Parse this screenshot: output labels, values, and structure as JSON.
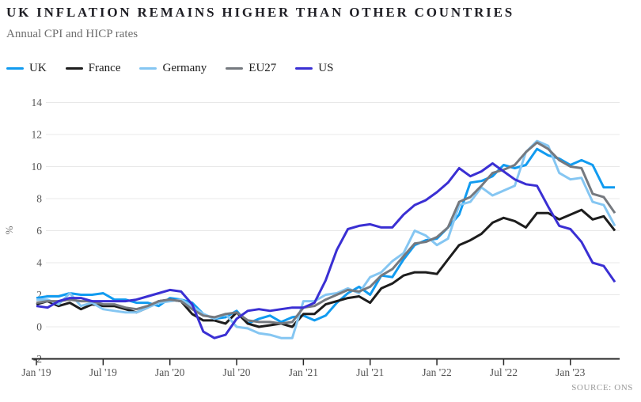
{
  "header": {
    "title": "UK INFLATION REMAINS HIGHER THAN OTHER COUNTRIES",
    "subtitle": "Annual CPI and HICP rates"
  },
  "source": "SOURCE: ONS",
  "chart_data": {
    "type": "line",
    "title": "UK INFLATION REMAINS HIGHER THAN OTHER COUNTRIES",
    "subtitle": "Annual CPI and HICP rates",
    "ylabel": "%",
    "xlabel": "",
    "ylim": [
      -2,
      14
    ],
    "ytick_step": 2,
    "grid": "horizontal",
    "legend_position": "top-left",
    "x": [
      "2019-01",
      "2019-02",
      "2019-03",
      "2019-04",
      "2019-05",
      "2019-06",
      "2019-07",
      "2019-08",
      "2019-09",
      "2019-10",
      "2019-11",
      "2019-12",
      "2020-01",
      "2020-02",
      "2020-03",
      "2020-04",
      "2020-05",
      "2020-06",
      "2020-07",
      "2020-08",
      "2020-09",
      "2020-10",
      "2020-11",
      "2020-12",
      "2021-01",
      "2021-02",
      "2021-03",
      "2021-04",
      "2021-05",
      "2021-06",
      "2021-07",
      "2021-08",
      "2021-09",
      "2021-10",
      "2021-11",
      "2021-12",
      "2022-01",
      "2022-02",
      "2022-03",
      "2022-04",
      "2022-05",
      "2022-06",
      "2022-07",
      "2022-08",
      "2022-09",
      "2022-10",
      "2022-11",
      "2022-12",
      "2023-01",
      "2023-02",
      "2023-03",
      "2023-04",
      "2023-05"
    ],
    "x_tick_indices": [
      0,
      6,
      12,
      18,
      24,
      30,
      36,
      42,
      48
    ],
    "x_tick_labels": [
      "Jan '19",
      "Jul '19",
      "Jan '20",
      "Jul '20",
      "Jan '21",
      "Jul '21",
      "Jan '22",
      "Jul '22",
      "Jan '23"
    ],
    "series": [
      {
        "name": "UK",
        "color": "#119bf0",
        "values": [
          1.8,
          1.9,
          1.9,
          2.1,
          2.0,
          2.0,
          2.1,
          1.7,
          1.7,
          1.5,
          1.5,
          1.3,
          1.8,
          1.7,
          1.5,
          0.8,
          0.5,
          0.6,
          1.0,
          0.2,
          0.5,
          0.7,
          0.3,
          0.6,
          0.7,
          0.4,
          0.7,
          1.5,
          2.1,
          2.5,
          2.0,
          3.2,
          3.1,
          4.2,
          5.1,
          5.4,
          5.5,
          6.2,
          7.0,
          9.0,
          9.1,
          9.4,
          10.1,
          9.9,
          10.1,
          11.1,
          10.7,
          10.5,
          10.1,
          10.4,
          10.1,
          8.7,
          8.7
        ]
      },
      {
        "name": "France",
        "color": "#1d1d1d",
        "values": [
          1.4,
          1.6,
          1.3,
          1.5,
          1.1,
          1.4,
          1.3,
          1.3,
          1.1,
          0.9,
          1.2,
          1.6,
          1.7,
          1.6,
          0.8,
          0.4,
          0.4,
          0.2,
          0.9,
          0.2,
          0.0,
          0.1,
          0.2,
          0.0,
          0.8,
          0.8,
          1.4,
          1.6,
          1.8,
          1.9,
          1.5,
          2.4,
          2.7,
          3.2,
          3.4,
          3.4,
          3.3,
          4.2,
          5.1,
          5.4,
          5.8,
          6.5,
          6.8,
          6.6,
          6.2,
          7.1,
          7.1,
          6.7,
          7.0,
          7.3,
          6.7,
          6.9,
          6.0
        ]
      },
      {
        "name": "Germany",
        "color": "#85c6f2",
        "values": [
          1.7,
          1.7,
          1.4,
          2.1,
          1.3,
          1.5,
          1.1,
          1.0,
          0.9,
          0.9,
          1.2,
          1.5,
          1.6,
          1.7,
          1.3,
          0.8,
          0.5,
          0.8,
          0.0,
          -0.1,
          -0.4,
          -0.5,
          -0.7,
          -0.7,
          1.6,
          1.6,
          2.0,
          2.1,
          2.4,
          2.1,
          3.1,
          3.4,
          4.1,
          4.6,
          6.0,
          5.7,
          5.1,
          5.5,
          7.6,
          7.8,
          8.7,
          8.2,
          8.5,
          8.8,
          10.9,
          11.6,
          11.3,
          9.6,
          9.2,
          9.3,
          7.8,
          7.6,
          6.3
        ]
      },
      {
        "name": "EU27",
        "color": "#75797f",
        "values": [
          1.5,
          1.6,
          1.6,
          1.7,
          1.6,
          1.6,
          1.4,
          1.4,
          1.2,
          1.1,
          1.3,
          1.6,
          1.7,
          1.6,
          1.1,
          0.7,
          0.6,
          0.8,
          0.9,
          0.4,
          0.3,
          0.3,
          0.2,
          0.3,
          1.2,
          1.3,
          1.7,
          2.0,
          2.3,
          2.2,
          2.5,
          3.2,
          3.6,
          4.4,
          5.2,
          5.3,
          5.6,
          6.2,
          7.8,
          8.1,
          8.8,
          9.6,
          9.8,
          10.1,
          10.9,
          11.5,
          11.1,
          10.4,
          10.0,
          9.9,
          8.3,
          8.1,
          7.1
        ]
      },
      {
        "name": "US",
        "color": "#3a2fd3",
        "values": [
          1.3,
          1.2,
          1.6,
          1.8,
          1.8,
          1.6,
          1.6,
          1.6,
          1.6,
          1.7,
          1.9,
          2.1,
          2.3,
          2.2,
          1.4,
          -0.3,
          -0.7,
          -0.5,
          0.5,
          1.0,
          1.1,
          1.0,
          1.1,
          1.2,
          1.2,
          1.5,
          2.9,
          4.8,
          6.1,
          6.3,
          6.4,
          6.2,
          6.2,
          7.0,
          7.6,
          7.9,
          8.4,
          9.0,
          9.9,
          9.4,
          9.7,
          10.2,
          9.7,
          9.2,
          8.9,
          8.8,
          7.5,
          6.3,
          6.1,
          5.3,
          4.0,
          3.8,
          2.8
        ]
      }
    ]
  }
}
